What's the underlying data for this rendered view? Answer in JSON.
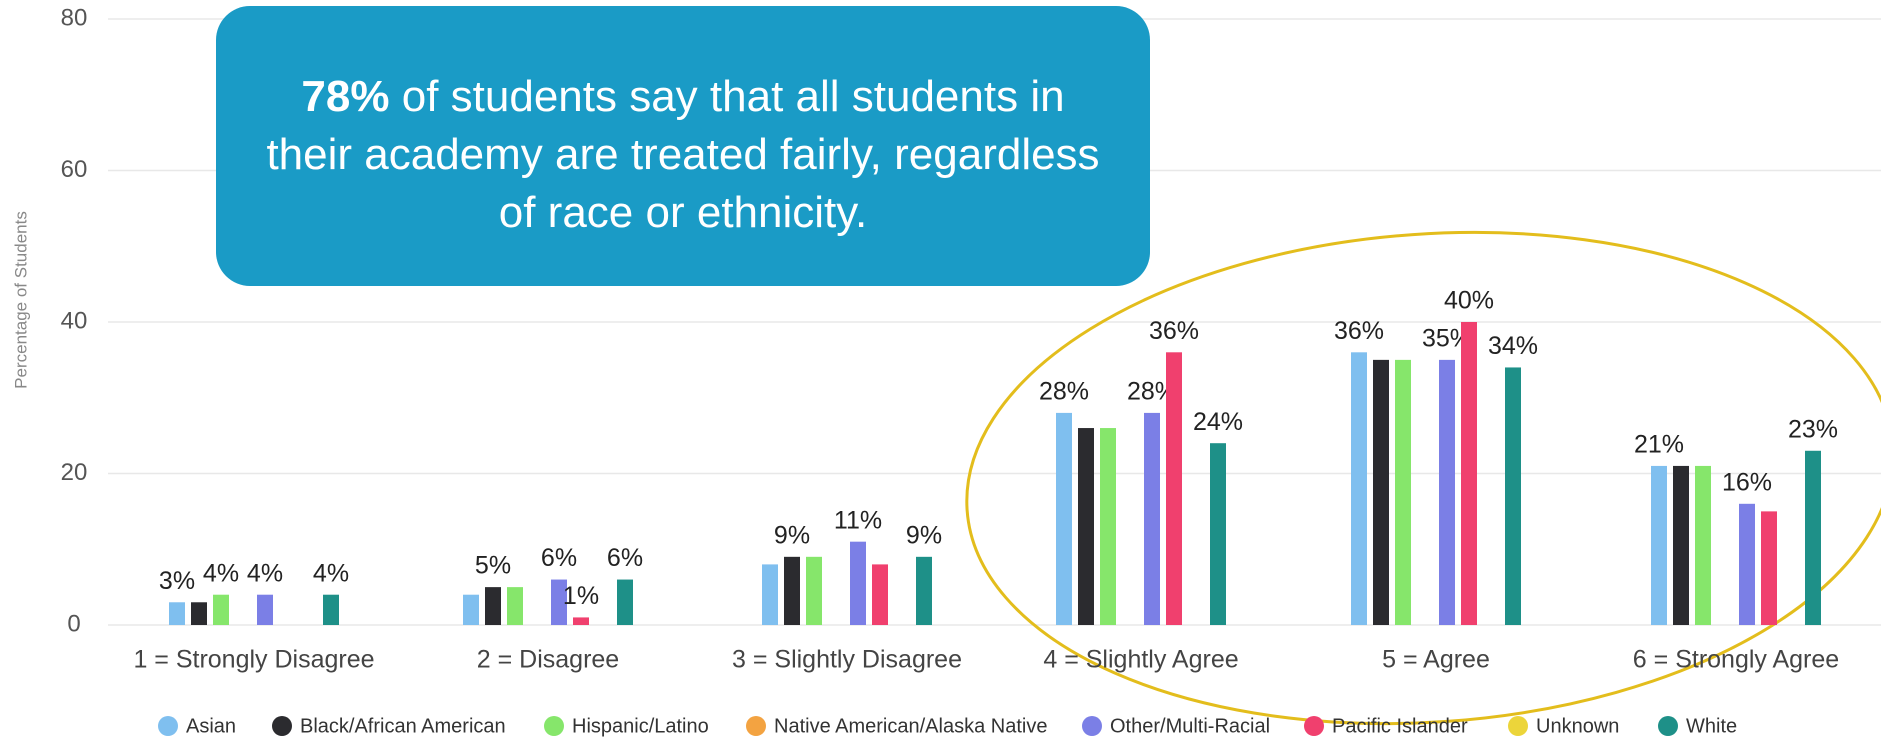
{
  "chart_data": {
    "type": "bar",
    "y_axis_label": "Percentage of Students",
    "annotation": {
      "bold": "78%",
      "text": "of students say that all students in their academy are treated fairly, regardless of race or ethnicity."
    },
    "categories": [
      "1 = Strongly Disagree",
      "2 = Disagree",
      "3 = Slightly Disagree",
      "4 = Slightly Agree",
      "5 = Agree",
      "6 = Strongly Agree"
    ],
    "series": [
      {
        "name": "Asian",
        "color": "#7fbfef",
        "values": [
          3,
          4,
          8,
          28,
          36,
          21
        ],
        "value_labels": [
          "3%",
          null,
          null,
          "28%",
          "36%",
          "21%"
        ]
      },
      {
        "name": "Black/African American",
        "color": "#2b2b2f",
        "values": [
          3,
          5,
          9,
          26,
          35,
          21
        ],
        "value_labels": [
          null,
          "5%",
          "9%",
          null,
          null,
          null
        ]
      },
      {
        "name": "Hispanic/Latino",
        "color": "#86e66b",
        "values": [
          4,
          5,
          9,
          26,
          35,
          21
        ],
        "value_labels": [
          "4%",
          null,
          null,
          null,
          null,
          null
        ]
      },
      {
        "name": "Native American/Alaska Native",
        "color": "#f3a341",
        "values": [
          null,
          null,
          null,
          null,
          null,
          null
        ]
      },
      {
        "name": "Other/Multi-Racial",
        "color": "#7b7fe6",
        "values": [
          4,
          6,
          11,
          28,
          35,
          16
        ],
        "value_labels": [
          "4%",
          "6%",
          "11%",
          "28%",
          "35%",
          "16%"
        ]
      },
      {
        "name": "Pacific Islander",
        "color": "#f0406e",
        "values": [
          null,
          1,
          8,
          36,
          40,
          15
        ],
        "value_labels": [
          null,
          "1%",
          null,
          "36%",
          "40%",
          null
        ]
      },
      {
        "name": "Unknown",
        "color": "#ecd53a",
        "values": [
          null,
          null,
          null,
          null,
          null,
          null
        ]
      },
      {
        "name": "White",
        "color": "#1e9088",
        "values": [
          4,
          6,
          9,
          24,
          34,
          23
        ],
        "value_labels": [
          "4%",
          "6%",
          "9%",
          "24%",
          "34%",
          "23%"
        ]
      }
    ],
    "ylim": [
      0,
      80
    ],
    "yticks": [
      0,
      20,
      40,
      60,
      80
    ],
    "grid": true,
    "legend": "bottom"
  }
}
